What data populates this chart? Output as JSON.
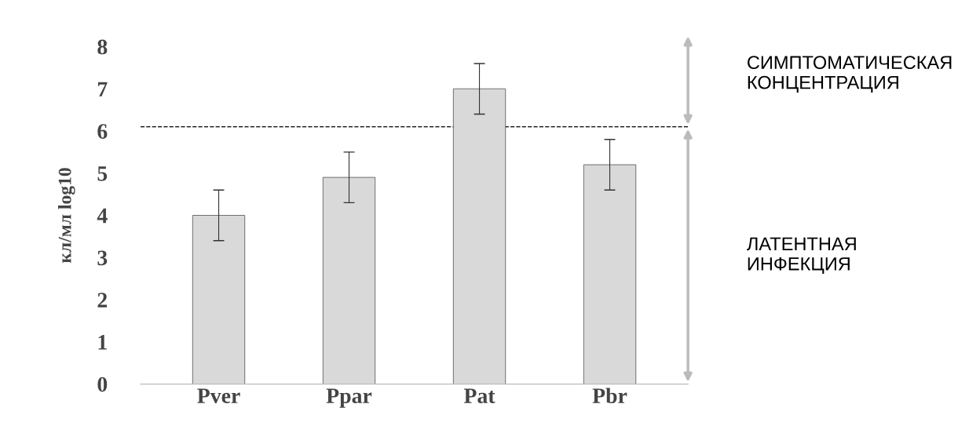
{
  "chart_data": {
    "type": "bar",
    "ylabel": "кл/мл log10",
    "categories": [
      "Pver",
      "Ppar",
      "Pat",
      "Pbr"
    ],
    "values": [
      4.0,
      4.9,
      7.0,
      5.2
    ],
    "errors": [
      0.6,
      0.6,
      0.6,
      0.6
    ],
    "color": "#d9d9d9",
    "ylim": [
      0,
      8
    ],
    "yticks": [
      0,
      1,
      2,
      3,
      4,
      5,
      6,
      7,
      8
    ],
    "grid": false,
    "ref_lines": [
      {
        "axis": "y",
        "value": 6.1,
        "line_style": "dashed",
        "color": "#000000"
      }
    ],
    "annotations": [
      "СИМПТОМАТИЧЕСКАЯ\nКОНЦЕНТРАЦИЯ",
      "ЛАТЕНТНАЯ\nИНФЕКЦИЯ"
    ]
  }
}
